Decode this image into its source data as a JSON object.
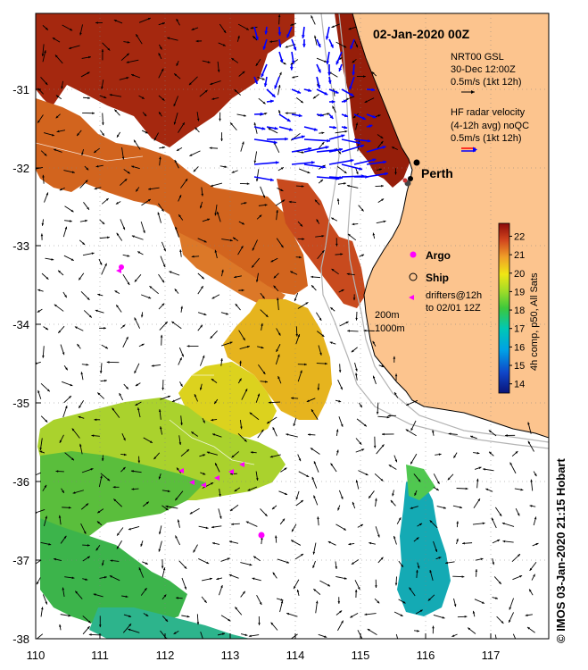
{
  "title": "02-Jan-2020 00Z",
  "credit": "© IMOS 03-Jan-2020 21:15 Hobart",
  "axes": {
    "x_ticks": [
      "110",
      "111",
      "112",
      "113",
      "114",
      "115",
      "116",
      "117"
    ],
    "y_ticks": [
      "-31",
      "-32",
      "-33",
      "-34",
      "-35",
      "-36",
      "-37",
      "-38"
    ],
    "lon_range": [
      110,
      117.85
    ],
    "lat_range": [
      -38,
      -30.2
    ]
  },
  "legend": {
    "gsl": [
      "NRT00 GSL",
      "30-Dec 12:00Z",
      "0.5m/s (1kt 12h)"
    ],
    "radar": [
      "HF radar velocity",
      "(4-12h avg) noQC",
      "0.5m/s (1kt 12h)"
    ],
    "argo": "Argo",
    "ship": "Ship",
    "drifters": [
      "drifters@12h",
      "to 02/01 12Z"
    ],
    "isobaths": [
      "200m",
      "1000m"
    ]
  },
  "places": {
    "city": "Perth"
  },
  "colorbar": {
    "label": "4h comp, p50, All Sats",
    "ticks": [
      "22",
      "21",
      "20",
      "19",
      "18",
      "17",
      "16",
      "15",
      "14"
    ],
    "range": [
      13.5,
      22.7
    ]
  },
  "colors": {
    "land": "#fcc48e",
    "radar_arrows": "#0000ff",
    "argo": "#ff00ff",
    "drifters": "#ff00ff",
    "isobath": "#b4b4b4"
  }
}
